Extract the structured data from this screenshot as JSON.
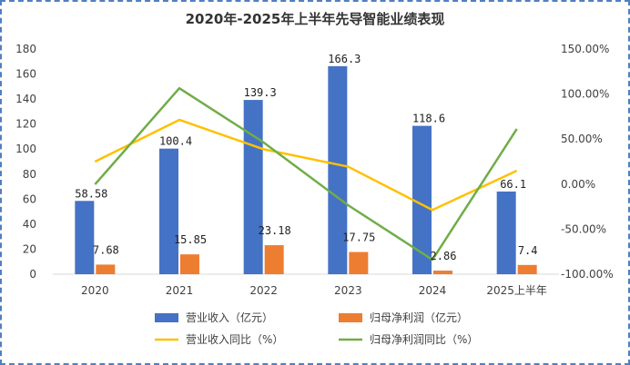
{
  "chart_data": {
    "type": "bar",
    "title": "2020年-2025年上半年先导智能业绩表现",
    "categories": [
      "2020",
      "2021",
      "2022",
      "2023",
      "2024",
      "2025上半年"
    ],
    "bar_series": [
      {
        "name": "营业收入（亿元）",
        "color": "#4472c4",
        "values": [
          58.58,
          100.4,
          139.3,
          166.3,
          118.6,
          66.1
        ],
        "labels": [
          "58.58",
          "100.4",
          "139.3",
          "166.3",
          "118.6",
          "66.1"
        ]
      },
      {
        "name": "归母净利润（亿元）",
        "color": "#ed7d31",
        "values": [
          7.68,
          15.85,
          23.18,
          17.75,
          2.86,
          7.4
        ],
        "labels": [
          "7.68",
          "15.85",
          "23.18",
          "17.75",
          "2.86",
          "7.4"
        ]
      }
    ],
    "line_series": [
      {
        "name": "营业收入同比（%）",
        "color": "#ffc000",
        "values": [
          25.0,
          71.4,
          38.7,
          19.4,
          -28.7,
          14.9
        ]
      },
      {
        "name": "归母净利润同比（%）",
        "color": "#70ad47",
        "values": [
          -0.3,
          106.5,
          46.2,
          -23.4,
          -83.9,
          61.2
        ]
      }
    ],
    "y_left": {
      "min": 0,
      "max": 180,
      "ticks": [
        "0",
        "20",
        "40",
        "60",
        "80",
        "100",
        "120",
        "140",
        "160",
        "180"
      ]
    },
    "y_right": {
      "min": -100,
      "max": 150,
      "ticks": [
        "-100.00%",
        "-50.00%",
        "0.00%",
        "50.00%",
        "100.00%",
        "150.00%"
      ]
    },
    "legend_position": "bottom",
    "grid": false
  }
}
